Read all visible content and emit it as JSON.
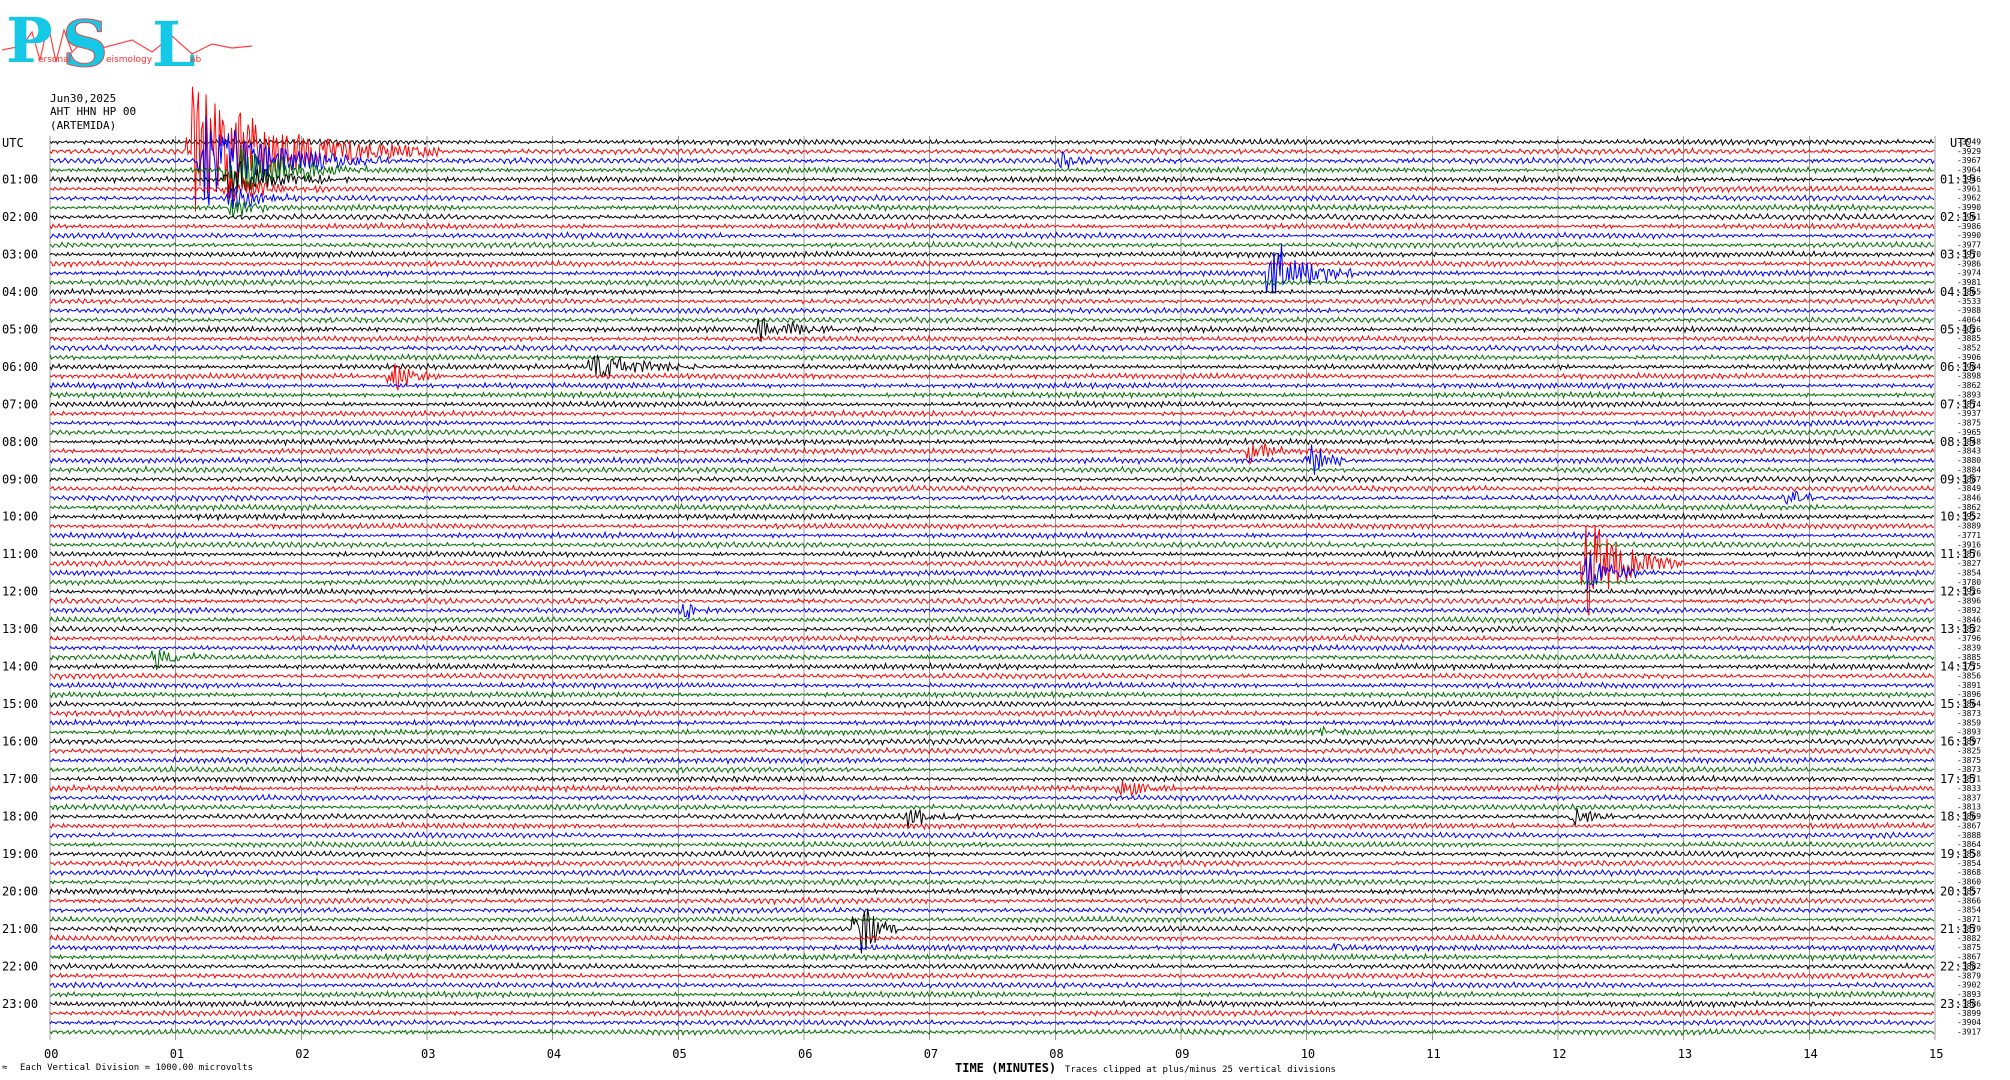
{
  "logo": {
    "p": "P",
    "s": "S",
    "l": "L",
    "words": [
      "ersonal",
      "eismology",
      "ab"
    ],
    "colors": {
      "cyan": "#14c8e6",
      "red": "#ff3030"
    }
  },
  "header": {
    "date": "Jun30,2025",
    "station": "AHT HHN HP 00",
    "location": "(ARTEMIDA)"
  },
  "axis": {
    "utc_left": "UTC",
    "utc_right": "UTC",
    "xlabel": "TIME (MINUTES)",
    "x_ticks": [
      "00",
      "01",
      "02",
      "03",
      "04",
      "05",
      "06",
      "07",
      "08",
      "09",
      "10",
      "11",
      "12",
      "13",
      "14",
      "15"
    ]
  },
  "footer": {
    "left_note": "Each Vertical Division = 1000.00 microvolts",
    "right_note": "Traces clipped at plus/minus 25 vertical divisions",
    "corner_mark": "≈"
  },
  "chart_data": {
    "type": "line",
    "title": "",
    "x_range_minutes": [
      0,
      15
    ],
    "lines_per_hour": 4,
    "num_lines": 96,
    "trace_colors": [
      "#000000",
      "#ff0000",
      "#0000ff",
      "#007000"
    ],
    "left_hour_labels": [
      "01:00",
      "02:00",
      "03:00",
      "04:00",
      "05:00",
      "06:00",
      "07:00",
      "08:00",
      "09:00",
      "10:00",
      "11:00",
      "12:00",
      "13:00",
      "14:00",
      "15:00",
      "16:00",
      "17:00",
      "18:00",
      "19:00",
      "20:00",
      "21:00",
      "22:00",
      "23:00"
    ],
    "right_hour_labels": [
      "01:15",
      "02:15",
      "03:15",
      "04:15",
      "05:15",
      "06:15",
      "07:15",
      "08:15",
      "09:15",
      "10:15",
      "11:15",
      "12:15",
      "13:15",
      "14:15",
      "15:15",
      "16:15",
      "17:15",
      "18:15",
      "19:15",
      "20:15",
      "21:15",
      "22:15",
      "23:15"
    ],
    "line_offsets": [
      -3949,
      -3929,
      -3967,
      -3964,
      -3946,
      -3961,
      -3962,
      -3990,
      -3961,
      -3986,
      -3990,
      -3977,
      -3970,
      -3986,
      -3974,
      -3981,
      -3865,
      -3533,
      -3988,
      -4064,
      -4026,
      -3885,
      -3852,
      -3906,
      -3984,
      -3898,
      -3862,
      -3893,
      -3874,
      -3937,
      -3875,
      -3965,
      -3848,
      -3843,
      -3880,
      -3884,
      -3887,
      -3849,
      -3846,
      -3862,
      -3952,
      -3889,
      -3771,
      -3916,
      -3876,
      -3827,
      -3854,
      -3780,
      -3926,
      -3896,
      -3892,
      -3846,
      -3822,
      -3796,
      -3839,
      -3885,
      -3775,
      -3856,
      -3891,
      -3896,
      -3864,
      -3873,
      -3859,
      -3893,
      -3897,
      -3825,
      -3875,
      -3873,
      -3871,
      -3833,
      -3837,
      -3813,
      -3869,
      -3867,
      -3888,
      -3864,
      -3858,
      -3854,
      -3868,
      -3860,
      -3857,
      -3866,
      -3854,
      -3871,
      -3879,
      -3882,
      -3875,
      -3867,
      -3882,
      -3879,
      -3902,
      -3893,
      -3886,
      -3899,
      -3904,
      -3917
    ],
    "events": [
      {
        "line": 1,
        "minute": 1.1,
        "amplitude": 8,
        "duration_min": 2.0
      },
      {
        "line": 2,
        "minute": 1.2,
        "amplitude": 6,
        "duration_min": 1.5
      },
      {
        "line": 3,
        "minute": 1.4,
        "amplitude": 4,
        "duration_min": 1.2
      },
      {
        "line": 4,
        "minute": 1.4,
        "amplitude": 3,
        "duration_min": 1.0
      },
      {
        "line": 5,
        "minute": 1.4,
        "amplitude": 2,
        "duration_min": 0.8
      },
      {
        "line": 6,
        "minute": 1.4,
        "amplitude": 2,
        "duration_min": 0.6
      },
      {
        "line": 7,
        "minute": 1.4,
        "amplitude": 1.5,
        "duration_min": 0.5
      },
      {
        "line": 2,
        "minute": 8.0,
        "amplitude": 1.5,
        "duration_min": 0.4
      },
      {
        "line": 14,
        "minute": 9.7,
        "amplitude": 5,
        "duration_min": 0.7
      },
      {
        "line": 20,
        "minute": 5.6,
        "amplitude": 1.6,
        "duration_min": 0.9
      },
      {
        "line": 24,
        "minute": 4.3,
        "amplitude": 1.8,
        "duration_min": 1.2
      },
      {
        "line": 25,
        "minute": 2.7,
        "amplitude": 2.5,
        "duration_min": 0.5
      },
      {
        "line": 33,
        "minute": 9.5,
        "amplitude": 1.6,
        "duration_min": 0.6
      },
      {
        "line": 34,
        "minute": 10.0,
        "amplitude": 2.5,
        "duration_min": 0.4
      },
      {
        "line": 38,
        "minute": 13.8,
        "amplitude": 1.5,
        "duration_min": 0.4
      },
      {
        "line": 45,
        "minute": 12.2,
        "amplitude": 7,
        "duration_min": 0.8
      },
      {
        "line": 46,
        "minute": 12.2,
        "amplitude": 3,
        "duration_min": 0.6
      },
      {
        "line": 50,
        "minute": 5.0,
        "amplitude": 1.5,
        "duration_min": 0.3
      },
      {
        "line": 55,
        "minute": 0.8,
        "amplitude": 2.2,
        "duration_min": 0.4
      },
      {
        "line": 63,
        "minute": 10.1,
        "amplitude": 1.2,
        "duration_min": 0.3
      },
      {
        "line": 69,
        "minute": 8.5,
        "amplitude": 1.2,
        "duration_min": 0.6
      },
      {
        "line": 72,
        "minute": 6.8,
        "amplitude": 1.5,
        "duration_min": 0.6
      },
      {
        "line": 72,
        "minute": 12.1,
        "amplitude": 1.5,
        "duration_min": 0.5
      },
      {
        "line": 84,
        "minute": 6.4,
        "amplitude": 5,
        "duration_min": 0.4
      },
      {
        "line": 86,
        "minute": 10.2,
        "amplitude": 1.3,
        "duration_min": 0.2
      }
    ]
  }
}
